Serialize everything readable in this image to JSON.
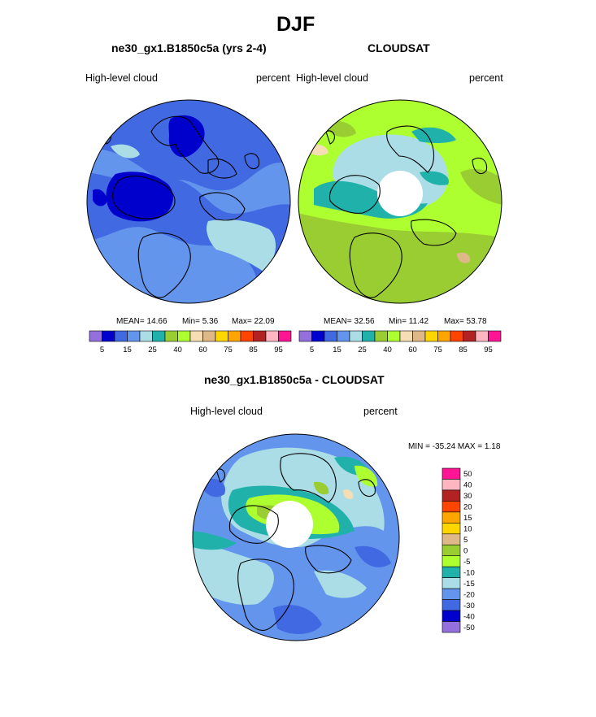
{
  "page_title": "DJF",
  "panels": [
    {
      "title": "ne30_gx1.B1850c5a (yrs 2-4)",
      "left_label": "High-level cloud",
      "right_label": "percent",
      "stats": {
        "mean": "MEAN=  14.66",
        "min": "Min=   5.36",
        "max": "Max=  22.09"
      }
    },
    {
      "title": "CLOUDSAT",
      "left_label": "High-level cloud",
      "right_label": "percent",
      "stats": {
        "mean": "MEAN=  32.56",
        "min": "Min=  11.42",
        "max": "Max=  53.78"
      }
    },
    {
      "title": "ne30_gx1.B1850c5a - CLOUDSAT",
      "left_label": "High-level cloud",
      "right_label": "percent",
      "minmax": "MIN = -35.24 MAX =   1.18"
    }
  ],
  "colorbar_abs": {
    "colors": [
      "#9370DB",
      "#0000CD",
      "#4169E1",
      "#6495ED",
      "#AADDE6",
      "#20B2AA",
      "#9ACD32",
      "#ADFF2F",
      "#F5DEB3",
      "#DEB887",
      "#FFD700",
      "#FFA500",
      "#FF4500",
      "#B22222",
      "#FFB6C1",
      "#FF1493"
    ],
    "tick_labels": [
      "5",
      "15",
      "25",
      "40",
      "60",
      "75",
      "85",
      "95"
    ]
  },
  "colorbar_diff": {
    "colors": [
      "#FF1493",
      "#FFB6C1",
      "#B22222",
      "#FF4500",
      "#FFA500",
      "#FFD700",
      "#DEB887",
      "#9ACD32",
      "#ADFF2F",
      "#20B2AA",
      "#AADDE6",
      "#6495ED",
      "#4169E1",
      "#0000CD",
      "#9370DB"
    ],
    "tick_labels": [
      "50",
      "40",
      "30",
      "20",
      "15",
      "10",
      "5",
      "0",
      "-5",
      "-10",
      "-15",
      "-20",
      "-30",
      "-40",
      "-50"
    ]
  }
}
